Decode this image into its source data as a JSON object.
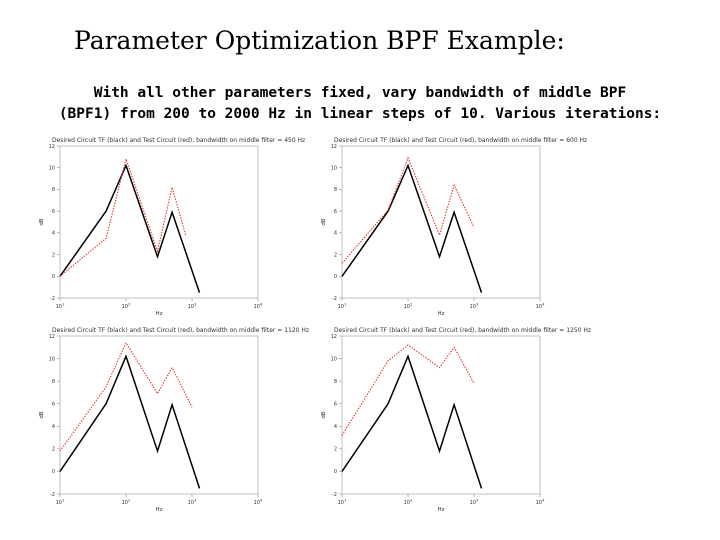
{
  "title": "Parameter Optimization BPF Example:",
  "subtitle_lines": [
    "With all other parameters fixed, vary bandwidth of middle BPF",
    "(BPF1) from 200 to 2000 Hz in linear steps of 10. Various iterations:"
  ],
  "colors": {
    "desired": "#000000",
    "test": "#e03030"
  },
  "chart_data": [
    {
      "type": "line",
      "title": "Desired Circuit TF (black) and Test Circuit (red), bandwidth on middle filter = 450 Hz",
      "xlabel": "Hz",
      "ylabel": "dB",
      "xscale": "log",
      "xlim": [
        10,
        10000
      ],
      "ylim": [
        -2,
        12
      ],
      "xtick_labels": [
        "10^1",
        "10^2",
        "10^3",
        "10^4"
      ],
      "ytick_labels": [
        "-2",
        "0",
        "2",
        "4",
        "6",
        "8",
        "10",
        "12"
      ],
      "series": [
        {
          "color": "black",
          "x": [
            10,
            50,
            100,
            300,
            500,
            1300
          ],
          "y": [
            0,
            6,
            10.2,
            1.8,
            5.9,
            -1.5
          ]
        },
        {
          "color": "red",
          "x": [
            10,
            50,
            100,
            300,
            500,
            800
          ],
          "y": [
            0,
            3.5,
            10.8,
            2.3,
            8.2,
            3.8
          ]
        }
      ]
    },
    {
      "type": "line",
      "title": "Desired Circuit TF (black) and Test Circuit (red), bandwidth on middle filter = 600 Hz",
      "xlabel": "Hz",
      "ylabel": "dB",
      "xscale": "log",
      "xlim": [
        10,
        10000
      ],
      "ylim": [
        -2,
        12
      ],
      "xtick_labels": [
        "10^1",
        "10^2",
        "10^3",
        "10^4"
      ],
      "ytick_labels": [
        "-2",
        "0",
        "2",
        "4",
        "6",
        "8",
        "10",
        "12"
      ],
      "series": [
        {
          "color": "black",
          "x": [
            10,
            50,
            100,
            300,
            500,
            1300
          ],
          "y": [
            0,
            6,
            10.2,
            1.8,
            5.9,
            -1.5
          ]
        },
        {
          "color": "red",
          "x": [
            10,
            50,
            100,
            300,
            500,
            1000
          ],
          "y": [
            1.2,
            6.1,
            10.9,
            3.8,
            8.4,
            4.5
          ]
        }
      ]
    },
    {
      "type": "line",
      "title": "Desired Circuit TF (black) and Test Circuit (red), bandwidth on middle filter = 1120 Hz",
      "xlabel": "Hz",
      "ylabel": "dB",
      "xscale": "log",
      "xlim": [
        10,
        10000
      ],
      "ylim": [
        -2,
        12
      ],
      "xtick_labels": [
        "10^1",
        "10^2",
        "10^3",
        "10^4"
      ],
      "ytick_labels": [
        "-2",
        "0",
        "2",
        "4",
        "6",
        "8",
        "10",
        "12"
      ],
      "series": [
        {
          "color": "black",
          "x": [
            10,
            50,
            100,
            300,
            500,
            1300
          ],
          "y": [
            0,
            6,
            10.2,
            1.8,
            5.9,
            -1.5
          ]
        },
        {
          "color": "red",
          "x": [
            10,
            50,
            100,
            300,
            500,
            1000
          ],
          "y": [
            1.8,
            7.5,
            11.4,
            6.9,
            9.2,
            5.7
          ]
        }
      ]
    },
    {
      "type": "line",
      "title": "Desired Circuit TF (black) and Test Circuit (red), bandwidth on middle filter = 1250 Hz",
      "xlabel": "Hz",
      "ylabel": "dB",
      "xscale": "log",
      "xlim": [
        10,
        10000
      ],
      "ylim": [
        -2,
        12
      ],
      "xtick_labels": [
        "10^1",
        "10^2",
        "10^3",
        "10^4"
      ],
      "ytick_labels": [
        "-2",
        "0",
        "2",
        "4",
        "6",
        "8",
        "10",
        "12"
      ],
      "series": [
        {
          "color": "black",
          "x": [
            10,
            50,
            100,
            300,
            500,
            1300
          ],
          "y": [
            0,
            6,
            10.2,
            1.8,
            5.9,
            -1.5
          ]
        },
        {
          "color": "red",
          "x": [
            10,
            50,
            100,
            300,
            500,
            1000
          ],
          "y": [
            3.2,
            9.8,
            11.2,
            9.2,
            11.0,
            7.8
          ]
        }
      ]
    }
  ]
}
